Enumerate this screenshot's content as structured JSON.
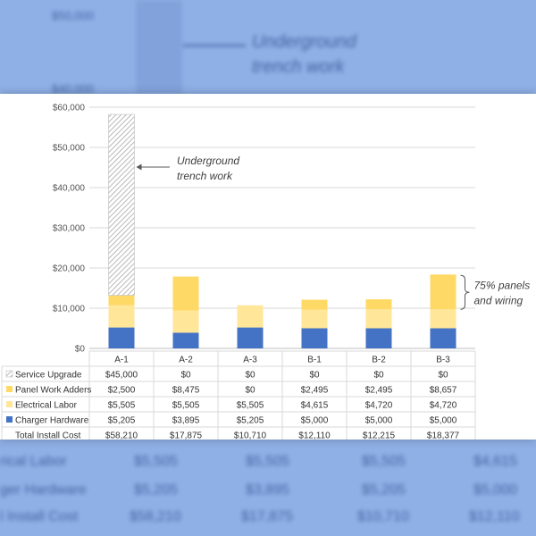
{
  "backdrop": {
    "top_tick": "$50,000",
    "tick2": "$40,000",
    "annotation_line1": "Underground",
    "annotation_line2": "trench work",
    "rows": [
      "rical Labor",
      "ger Hardware",
      "l Install Cost"
    ],
    "row_values": [
      [
        "$5,505",
        "$5,505",
        "$5,505",
        "$4,615"
      ],
      [
        "$5,205",
        "$3,895",
        "$5,205",
        "$5,000"
      ],
      [
        "$58,210",
        "$17,875",
        "$10,710",
        "$12,110"
      ]
    ]
  },
  "chart_data": {
    "type": "bar",
    "stacked": true,
    "categories": [
      "A-1",
      "A-2",
      "A-3",
      "B-1",
      "B-2",
      "B-3"
    ],
    "series": [
      {
        "name": "Charger Hardware",
        "color": "#4472c4",
        "pattern": "solid",
        "values": [
          5205,
          3895,
          5205,
          5000,
          5000,
          5000
        ]
      },
      {
        "name": "Electrical Labor",
        "color": "#ffe699",
        "pattern": "solid",
        "values": [
          5505,
          5505,
          5505,
          4615,
          4720,
          4720
        ]
      },
      {
        "name": "Panel Work Adders",
        "color": "#ffd966",
        "pattern": "solid",
        "values": [
          2500,
          8475,
          0,
          2495,
          2495,
          8657
        ]
      },
      {
        "name": "Service Upgrade",
        "color": "#a6a6a6",
        "pattern": "hatch",
        "values": [
          45000,
          0,
          0,
          0,
          0,
          0
        ]
      }
    ],
    "totals_label": "Total Install Cost",
    "totals": [
      58210,
      17875,
      10710,
      12110,
      12215,
      18377
    ],
    "ylim": [
      0,
      60000
    ],
    "yticks": [
      0,
      10000,
      20000,
      30000,
      40000,
      50000,
      60000
    ],
    "ytick_labels": [
      "$0",
      "$10,000",
      "$20,000",
      "$30,000",
      "$40,000",
      "$50,000",
      "$60,000"
    ],
    "grid": true,
    "legend": "data-table-below",
    "table_rows": [
      {
        "label": "Service Upgrade",
        "cells": [
          "$45,000",
          "$0",
          "$0",
          "$0",
          "$0",
          "$0"
        ]
      },
      {
        "label": "Panel Work Adders",
        "cells": [
          "$2,500",
          "$8,475",
          "$0",
          "$2,495",
          "$2,495",
          "$8,657"
        ]
      },
      {
        "label": "Electrical Labor",
        "cells": [
          "$5,505",
          "$5,505",
          "$5,505",
          "$4,615",
          "$4,720",
          "$4,720"
        ]
      },
      {
        "label": "Charger Hardware",
        "cells": [
          "$5,205",
          "$3,895",
          "$5,205",
          "$5,000",
          "$5,000",
          "$5,000"
        ]
      },
      {
        "label": "Total Install Cost",
        "cells": [
          "$58,210",
          "$17,875",
          "$10,710",
          "$12,110",
          "$12,215",
          "$18,377"
        ]
      }
    ],
    "table_row_series": [
      "Service Upgrade",
      "Panel Work Adders",
      "Electrical Labor",
      "Charger Hardware",
      ""
    ],
    "annotations": [
      {
        "lines": [
          "Underground",
          "trench work"
        ],
        "points_to": "A-1"
      },
      {
        "lines": [
          "75% panels",
          "and wiring"
        ],
        "brace_for": "B-3",
        "brace_range": [
          9720,
          18377
        ]
      }
    ]
  }
}
